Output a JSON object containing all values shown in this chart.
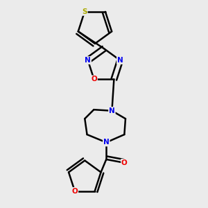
{
  "background_color": "#ebebeb",
  "bond_color": "#000000",
  "atom_colors": {
    "N": "#0000ee",
    "O": "#ee0000",
    "S": "#aaaa00",
    "C": "#000000"
  },
  "figsize": [
    3.0,
    3.0
  ],
  "dpi": 100
}
